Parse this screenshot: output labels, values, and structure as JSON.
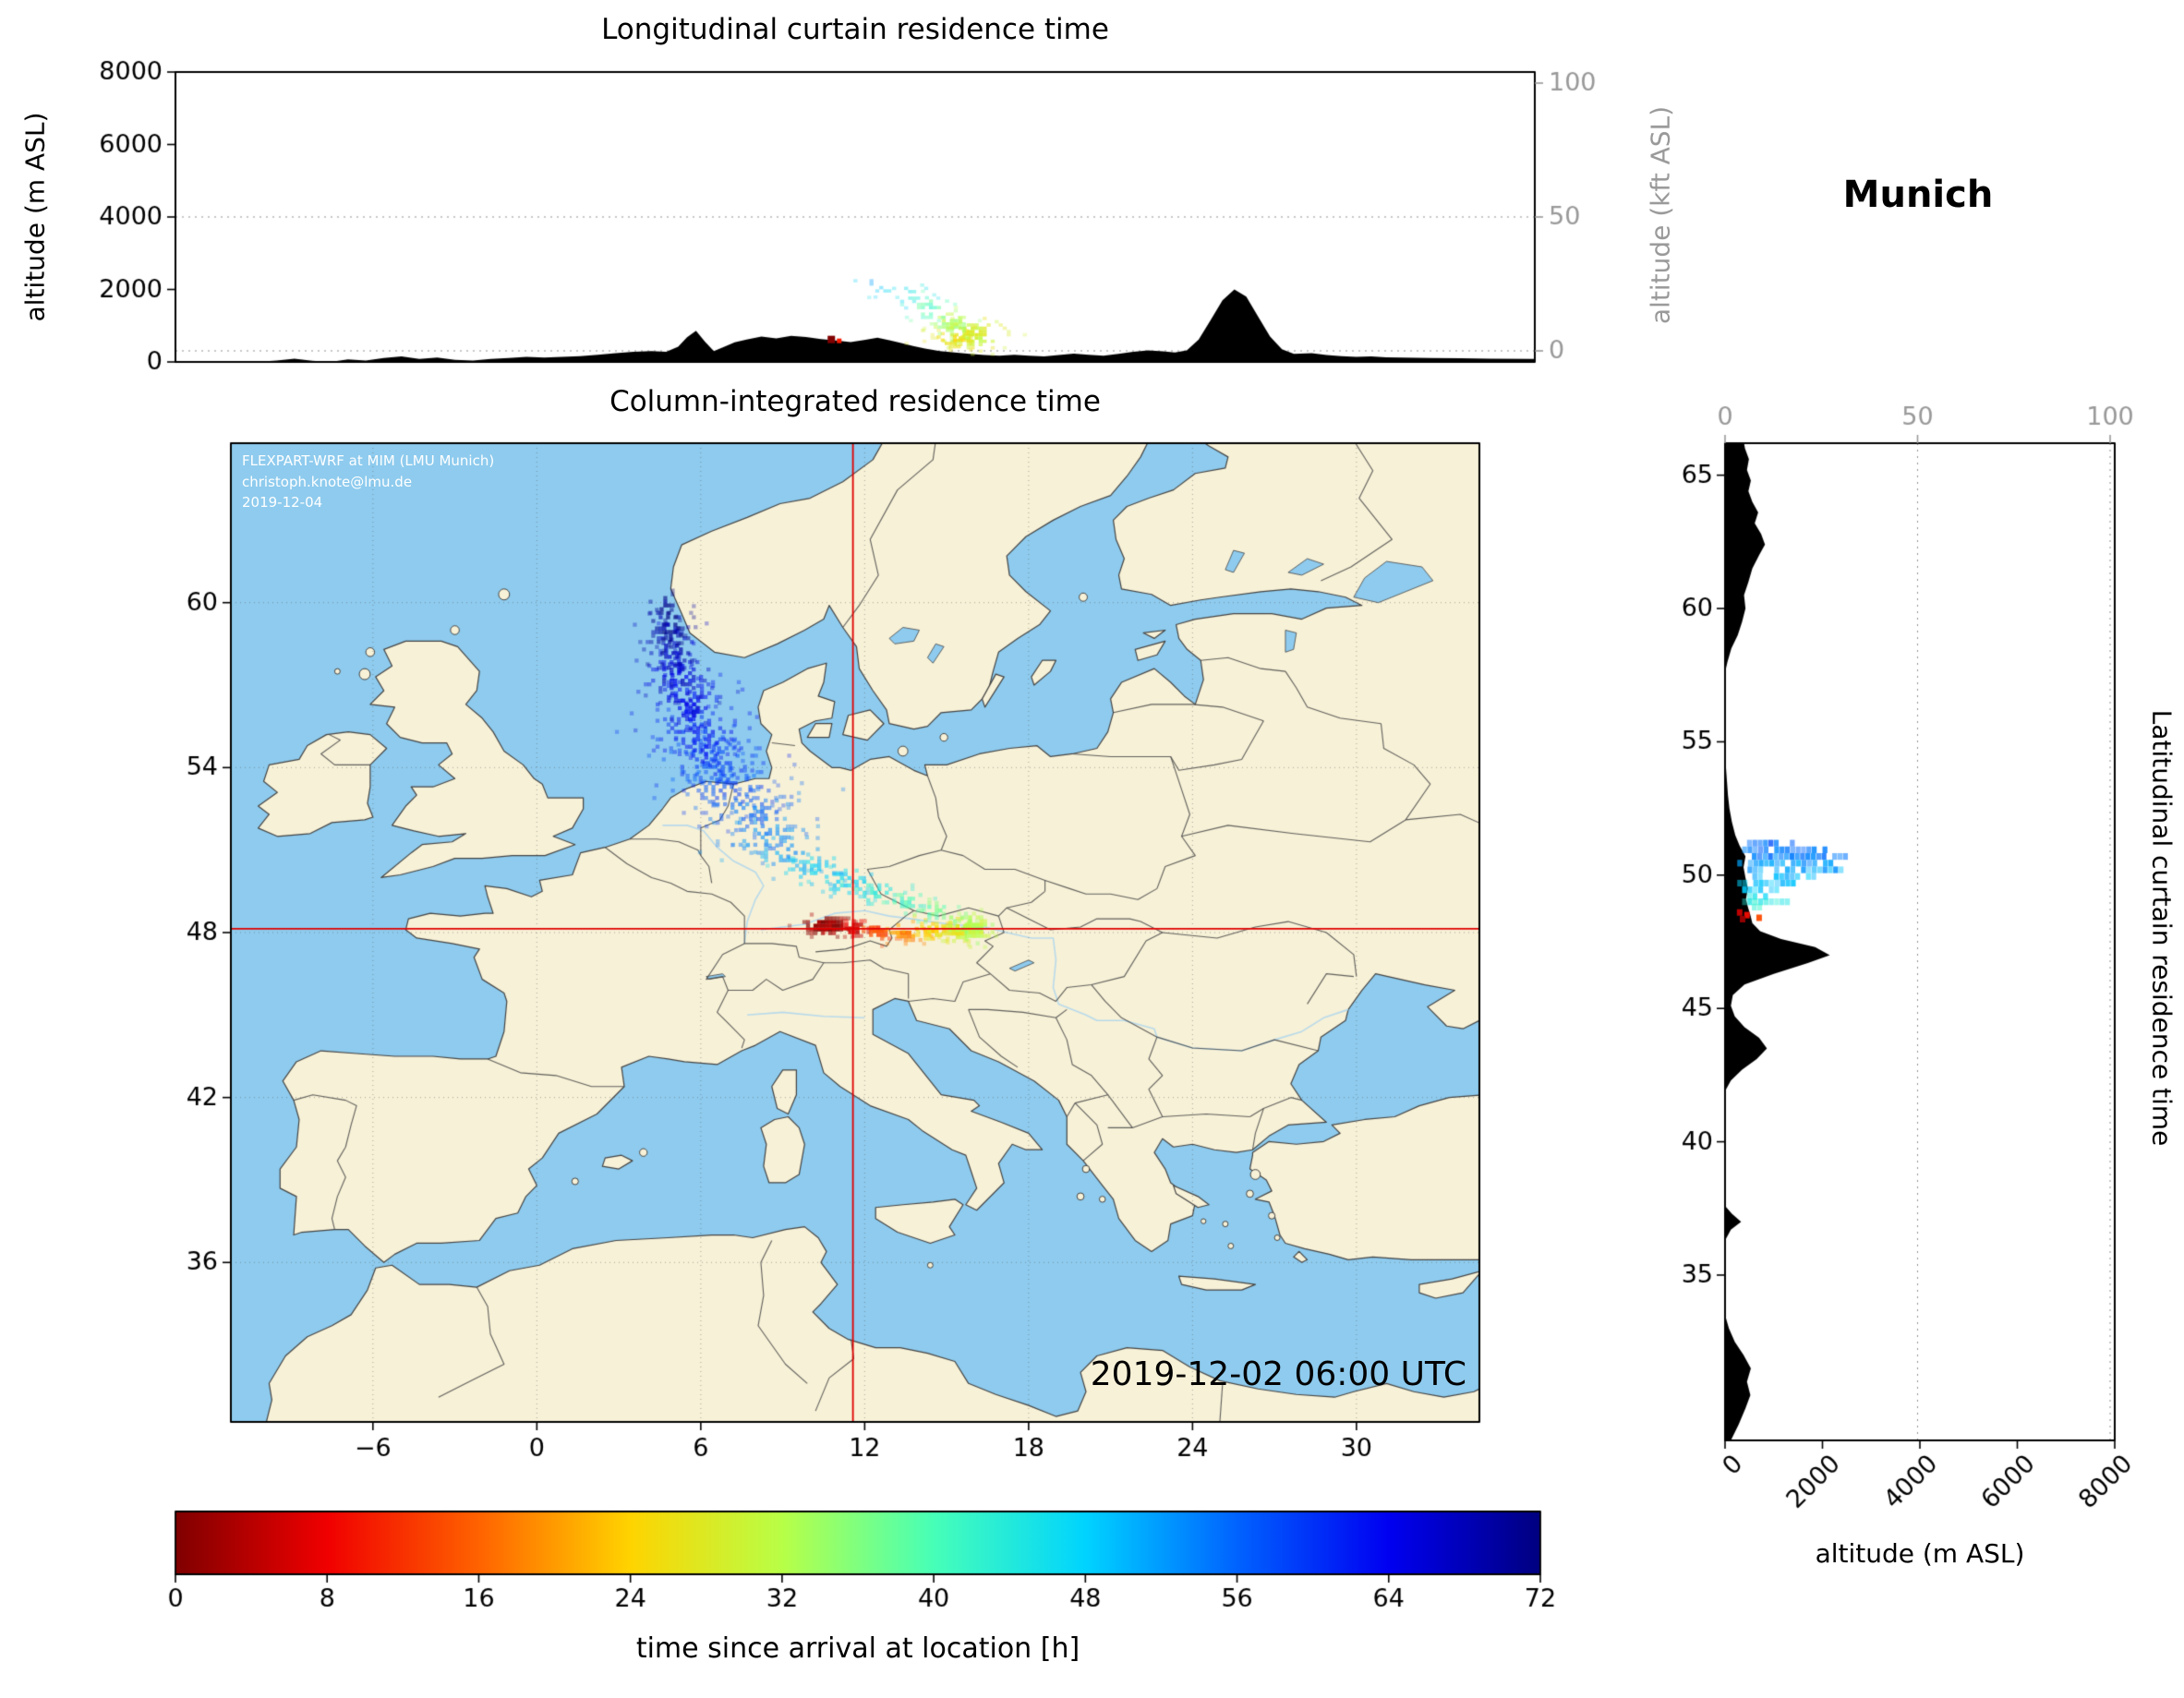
{
  "meta": {
    "location": "Munich",
    "timestamp": "2019-12-02 06:00 UTC",
    "watermark": [
      "FLEXPART-WRF at MIM (LMU Munich)",
      "christoph.knote@lmu.de",
      "2019-12-04"
    ]
  },
  "colors": {
    "ocean": "#8ecbee",
    "land": "#f7f1d7",
    "coast": "#444444",
    "border": "#5a5a5a",
    "river": "#a9d5f0",
    "terrain": "#000000",
    "crosshair": "#e00000",
    "grid": "#909090",
    "axis_gray": "#999999",
    "frame": "#000000",
    "watermark_text": "#ffffff"
  },
  "panels": {
    "longitudinal": {
      "title": "Longitudinal curtain residence time",
      "ylabel": "altitude (m ASL)",
      "ylabel_right": "altitude (kft ASL)",
      "ylim": [
        0,
        8000
      ],
      "yticks": [
        0,
        2000,
        4000,
        6000,
        8000
      ],
      "ytick_labels": [
        "0",
        "2000",
        "4000",
        "6000",
        "8000"
      ],
      "right_ylim": [
        0,
        100
      ],
      "yticks_right": [
        0,
        50,
        100
      ],
      "ytick_right_labels": [
        "0",
        "50",
        "100"
      ]
    },
    "map": {
      "title": "Column-integrated residence time",
      "lon_range": [
        -11.2,
        34.5
      ],
      "lat_range": [
        30.2,
        65.8
      ],
      "xticks": [
        -6,
        0,
        6,
        12,
        18,
        24,
        30
      ],
      "xtick_labels": [
        "−6",
        "0",
        "6",
        "12",
        "18",
        "24",
        "30"
      ],
      "yticks": [
        36,
        42,
        48,
        54,
        60
      ],
      "ytick_labels": [
        "36",
        "42",
        "48",
        "54",
        "60"
      ],
      "receptor": {
        "name": "Munich",
        "lon": 11.57,
        "lat": 48.14
      }
    },
    "latitudinal": {
      "side_label": "Latitudinal curtain residence time",
      "xlabel": "altitude (m ASL)",
      "xlim": [
        0,
        8000
      ],
      "xticks": [
        0,
        2000,
        4000,
        6000,
        8000
      ],
      "xtick_labels": [
        "0",
        "2000",
        "4000",
        "6000",
        "8000"
      ],
      "xticks_top": [
        0,
        50,
        100
      ],
      "xtick_top_labels": [
        "0",
        "50",
        "100"
      ],
      "lat_range": [
        28.8,
        66.2
      ],
      "yticks": [
        35,
        40,
        45,
        50,
        55,
        60,
        65
      ],
      "ytick_labels": [
        "35",
        "40",
        "45",
        "50",
        "55",
        "60",
        "65"
      ]
    },
    "colorbar": {
      "label": "time since arrival at location [h]",
      "range": [
        0,
        72
      ],
      "ticks": [
        0,
        8,
        16,
        24,
        32,
        40,
        48,
        56,
        64,
        72
      ],
      "tick_labels": [
        "0",
        "8",
        "16",
        "24",
        "32",
        "40",
        "48",
        "56",
        "64",
        "72"
      ]
    }
  },
  "chart_data": {
    "type": "heatmap",
    "description": "FLEXPART-WRF backward residence-time footprint for Munich: column-integrated map plus longitudinal and latitudinal curtains, colored by time since arrival (0-72 h, jet reversed).",
    "colormap_stops": [
      [
        0,
        "#800000"
      ],
      [
        8,
        "#f10000"
      ],
      [
        16,
        "#ff6300"
      ],
      [
        24,
        "#ffd400"
      ],
      [
        32,
        "#b8ff47"
      ],
      [
        40,
        "#47ffb8"
      ],
      [
        48,
        "#00d4ff"
      ],
      [
        56,
        "#0063ff"
      ],
      [
        64,
        "#0000f1"
      ],
      [
        72,
        "#000080"
      ]
    ],
    "map_plume": [
      [
        10.6,
        48.25,
        0.75,
        0.3,
        1,
        1.3
      ],
      [
        11.6,
        48.15,
        0.5,
        0.25,
        6,
        1.1
      ],
      [
        12.5,
        48.05,
        0.6,
        0.28,
        13,
        0.9
      ],
      [
        13.5,
        48.0,
        0.65,
        0.3,
        19,
        0.85
      ],
      [
        14.5,
        48.05,
        0.6,
        0.32,
        25,
        0.9
      ],
      [
        15.4,
        48.1,
        0.6,
        0.36,
        29,
        1.0
      ],
      [
        16.0,
        48.15,
        0.55,
        0.4,
        32,
        1.15
      ],
      [
        15.3,
        48.55,
        0.5,
        0.3,
        35,
        0.55
      ],
      [
        14.5,
        48.8,
        0.6,
        0.32,
        38,
        0.5
      ],
      [
        13.5,
        49.1,
        0.7,
        0.35,
        41,
        0.5
      ],
      [
        12.4,
        49.45,
        0.8,
        0.4,
        44,
        0.55
      ],
      [
        11.3,
        49.85,
        0.9,
        0.45,
        47,
        0.55
      ],
      [
        10.2,
        50.3,
        1.0,
        0.5,
        49,
        0.5
      ],
      [
        9.2,
        50.9,
        1.15,
        0.55,
        52,
        0.45
      ],
      [
        8.4,
        51.6,
        1.4,
        0.65,
        54,
        0.4
      ],
      [
        7.7,
        52.4,
        1.6,
        0.75,
        56,
        0.38
      ],
      [
        7.0,
        53.3,
        1.65,
        0.8,
        58,
        0.38
      ],
      [
        6.4,
        54.3,
        1.5,
        0.8,
        60,
        0.42
      ],
      [
        5.9,
        55.3,
        1.3,
        0.8,
        62,
        0.45
      ],
      [
        5.5,
        56.3,
        1.1,
        0.8,
        64,
        0.5
      ],
      [
        5.2,
        57.3,
        0.95,
        0.8,
        66,
        0.55
      ],
      [
        5.0,
        58.3,
        0.8,
        0.75,
        68,
        0.6
      ],
      [
        4.8,
        59.2,
        0.65,
        0.6,
        70,
        0.6
      ],
      [
        4.7,
        59.9,
        0.5,
        0.45,
        72,
        0.55
      ],
      [
        6.2,
        54.5,
        0.55,
        0.6,
        62,
        0.4
      ],
      [
        5.6,
        55.9,
        0.5,
        0.6,
        65,
        0.5
      ],
      [
        5.1,
        57.5,
        0.45,
        0.6,
        67,
        0.5
      ],
      [
        4.9,
        58.8,
        0.4,
        0.5,
        70,
        0.55
      ]
    ],
    "lon_curtain": {
      "terrain": [
        [
          -11.2,
          0
        ],
        [
          -8.5,
          0
        ],
        [
          -7.8,
          40
        ],
        [
          -7.2,
          90
        ],
        [
          -6.6,
          30
        ],
        [
          -6.0,
          0
        ],
        [
          -5.4,
          70
        ],
        [
          -4.8,
          40
        ],
        [
          -4.2,
          110
        ],
        [
          -3.6,
          150
        ],
        [
          -3.0,
          80
        ],
        [
          -2.4,
          120
        ],
        [
          -1.8,
          60
        ],
        [
          -1.2,
          40
        ],
        [
          -0.6,
          80
        ],
        [
          0.0,
          110
        ],
        [
          0.6,
          140
        ],
        [
          1.2,
          120
        ],
        [
          1.8,
          140
        ],
        [
          2.4,
          160
        ],
        [
          3.0,
          200
        ],
        [
          3.6,
          240
        ],
        [
          4.2,
          280
        ],
        [
          4.8,
          300
        ],
        [
          5.3,
          280
        ],
        [
          5.7,
          420
        ],
        [
          6.0,
          680
        ],
        [
          6.3,
          860
        ],
        [
          6.6,
          560
        ],
        [
          6.9,
          300
        ],
        [
          7.2,
          400
        ],
        [
          7.6,
          540
        ],
        [
          8.0,
          620
        ],
        [
          8.5,
          700
        ],
        [
          9.0,
          650
        ],
        [
          9.5,
          720
        ],
        [
          10.0,
          690
        ],
        [
          10.5,
          630
        ],
        [
          11.0,
          590
        ],
        [
          11.5,
          550
        ],
        [
          12.0,
          610
        ],
        [
          12.4,
          670
        ],
        [
          12.8,
          600
        ],
        [
          13.2,
          520
        ],
        [
          13.6,
          440
        ],
        [
          14.0,
          370
        ],
        [
          14.5,
          300
        ],
        [
          15.0,
          260
        ],
        [
          15.5,
          220
        ],
        [
          16.0,
          190
        ],
        [
          16.5,
          170
        ],
        [
          17.0,
          200
        ],
        [
          17.5,
          170
        ],
        [
          18.0,
          150
        ],
        [
          18.5,
          190
        ],
        [
          19.0,
          230
        ],
        [
          19.5,
          200
        ],
        [
          20.0,
          170
        ],
        [
          20.5,
          220
        ],
        [
          21.0,
          280
        ],
        [
          21.5,
          320
        ],
        [
          22.0,
          290
        ],
        [
          22.4,
          260
        ],
        [
          22.8,
          320
        ],
        [
          23.2,
          620
        ],
        [
          23.6,
          1150
        ],
        [
          24.0,
          1700
        ],
        [
          24.4,
          2000
        ],
        [
          24.8,
          1800
        ],
        [
          25.2,
          1250
        ],
        [
          25.6,
          700
        ],
        [
          26.0,
          350
        ],
        [
          26.4,
          220
        ],
        [
          27.0,
          240
        ],
        [
          27.5,
          190
        ],
        [
          28.0,
          160
        ],
        [
          28.5,
          140
        ],
        [
          29.0,
          150
        ],
        [
          29.5,
          130
        ],
        [
          30.0,
          120
        ],
        [
          31.0,
          110
        ],
        [
          32.0,
          100
        ],
        [
          33.0,
          90
        ],
        [
          34.5,
          80
        ]
      ],
      "plume": [
        [
          15.6,
          750,
          0.9,
          380,
          29,
          1.0
        ],
        [
          15.0,
          600,
          0.7,
          250,
          26,
          0.8
        ],
        [
          14.9,
          1050,
          0.6,
          300,
          33,
          0.7
        ],
        [
          14.2,
          1500,
          0.6,
          330,
          40,
          0.45
        ],
        [
          13.5,
          1850,
          0.6,
          300,
          45,
          0.3
        ],
        [
          12.8,
          2050,
          0.55,
          260,
          48,
          0.22
        ],
        [
          12.2,
          2150,
          0.5,
          220,
          51,
          0.15
        ]
      ],
      "receptor_marker": {
        "lon": 10.85,
        "alt": 620
      }
    },
    "lat_curtain": {
      "terrain": [
        [
          28.8,
          120
        ],
        [
          29.4,
          280
        ],
        [
          30.0,
          420
        ],
        [
          30.5,
          520
        ],
        [
          31.0,
          450
        ],
        [
          31.5,
          530
        ],
        [
          32.0,
          380
        ],
        [
          32.5,
          200
        ],
        [
          33.0,
          80
        ],
        [
          33.5,
          0
        ],
        [
          36.3,
          0
        ],
        [
          36.7,
          120
        ],
        [
          37.0,
          330
        ],
        [
          37.3,
          140
        ],
        [
          37.6,
          0
        ],
        [
          41.9,
          0
        ],
        [
          42.3,
          120
        ],
        [
          42.7,
          350
        ],
        [
          43.1,
          650
        ],
        [
          43.5,
          860
        ],
        [
          43.9,
          700
        ],
        [
          44.3,
          400
        ],
        [
          44.7,
          200
        ],
        [
          45.1,
          120
        ],
        [
          45.5,
          160
        ],
        [
          45.9,
          400
        ],
        [
          46.3,
          1000
        ],
        [
          46.7,
          1700
        ],
        [
          47.0,
          2150
        ],
        [
          47.3,
          1850
        ],
        [
          47.6,
          1150
        ],
        [
          47.9,
          720
        ],
        [
          48.2,
          560
        ],
        [
          48.5,
          520
        ],
        [
          48.8,
          470
        ],
        [
          49.1,
          430
        ],
        [
          49.5,
          470
        ],
        [
          49.9,
          420
        ],
        [
          50.3,
          380
        ],
        [
          50.7,
          420
        ],
        [
          51.1,
          300
        ],
        [
          51.5,
          210
        ],
        [
          52.0,
          140
        ],
        [
          52.5,
          90
        ],
        [
          53.0,
          60
        ],
        [
          53.5,
          40
        ],
        [
          54.0,
          20
        ],
        [
          54.5,
          0
        ],
        [
          57.6,
          0
        ],
        [
          58.0,
          50
        ],
        [
          58.5,
          130
        ],
        [
          59.0,
          260
        ],
        [
          59.5,
          350
        ],
        [
          60.0,
          420
        ],
        [
          60.5,
          390
        ],
        [
          61.0,
          480
        ],
        [
          61.5,
          560
        ],
        [
          62.0,
          700
        ],
        [
          62.4,
          820
        ],
        [
          62.8,
          740
        ],
        [
          63.2,
          610
        ],
        [
          63.6,
          680
        ],
        [
          64.0,
          560
        ],
        [
          64.4,
          480
        ],
        [
          64.8,
          530
        ],
        [
          65.2,
          450
        ],
        [
          65.6,
          490
        ],
        [
          66.0,
          410
        ],
        [
          66.2,
          390
        ]
      ],
      "streaks": [
        [
          51.2,
          500,
          1400,
          56
        ],
        [
          50.95,
          400,
          2100,
          55
        ],
        [
          50.7,
          600,
          2500,
          54
        ],
        [
          50.45,
          300,
          2200,
          52
        ],
        [
          50.2,
          400,
          2400,
          51
        ],
        [
          49.95,
          500,
          1900,
          50
        ],
        [
          49.7,
          300,
          1500,
          49
        ],
        [
          49.45,
          400,
          1100,
          48
        ],
        [
          49.2,
          500,
          900,
          46
        ],
        [
          49.0,
          400,
          1300,
          44
        ],
        [
          48.8,
          600,
          1000,
          43
        ]
      ],
      "spots": [
        [
          48.5,
          450,
          9
        ],
        [
          48.4,
          700,
          14
        ],
        [
          48.6,
          300,
          5
        ],
        [
          48.35,
          360,
          2
        ]
      ]
    }
  }
}
